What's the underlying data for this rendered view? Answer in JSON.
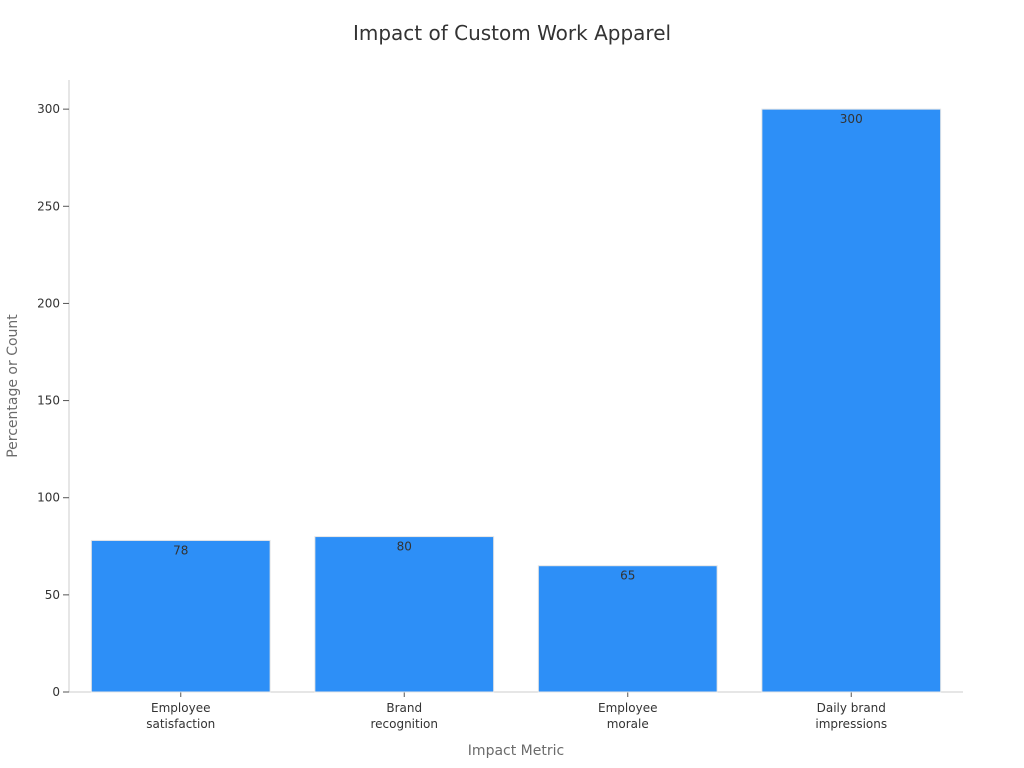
{
  "chart_data": {
    "type": "bar",
    "title": "Impact of Custom Work Apparel",
    "xlabel": "Impact Metric",
    "ylabel": "Percentage or Count",
    "categories": [
      [
        "Employee",
        "satisfaction"
      ],
      [
        "Brand",
        "recognition"
      ],
      [
        "Employee",
        "morale"
      ],
      [
        "Daily brand",
        "impressions"
      ]
    ],
    "values": [
      78,
      80,
      65,
      300
    ],
    "ylim": [
      0,
      315
    ],
    "yticks": [
      0,
      50,
      100,
      150,
      200,
      250,
      300
    ],
    "grid": false,
    "bar_color": "#2d8ff7",
    "bar_edge_color": "#e6e6e6",
    "axis_color": "#cccccc",
    "text_color": "#333333",
    "axis_title_color": "#6b6b6b"
  }
}
